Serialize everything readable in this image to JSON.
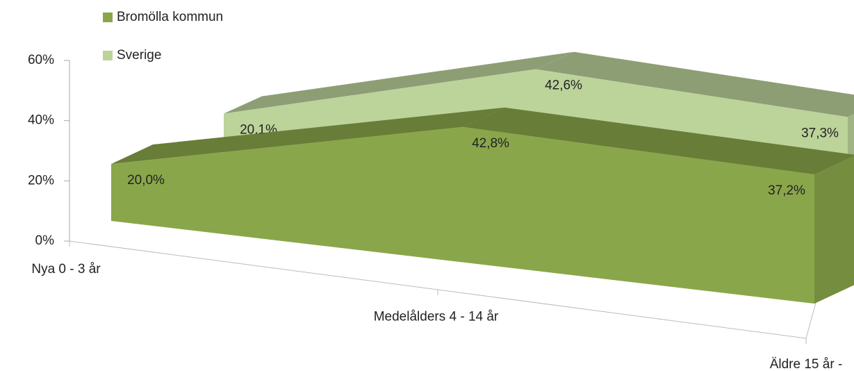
{
  "chart_data": {
    "type": "area3d",
    "categories": [
      "Nya 0 - 3 år",
      "Medelålders 4 - 14 år",
      "Äldre 15 år -"
    ],
    "series": [
      {
        "name": "Bromölla kommun",
        "color": "#8aa64a",
        "values": [
          20.0,
          42.8,
          37.2
        ],
        "value_labels": [
          "20,0%",
          "42,8%",
          "37,2%"
        ]
      },
      {
        "name": "Sverige",
        "color": "#bcd39a",
        "values": [
          20.1,
          42.6,
          37.3
        ],
        "value_labels": [
          "20,1%",
          "42,6%",
          "37,3%"
        ]
      }
    ],
    "ylim": [
      0,
      60
    ],
    "yticks": [
      {
        "value": 0,
        "label": "0%"
      },
      {
        "value": 20,
        "label": "20%"
      },
      {
        "value": 40,
        "label": "40%"
      },
      {
        "value": 60,
        "label": "60%"
      }
    ],
    "legend": "top-left"
  }
}
